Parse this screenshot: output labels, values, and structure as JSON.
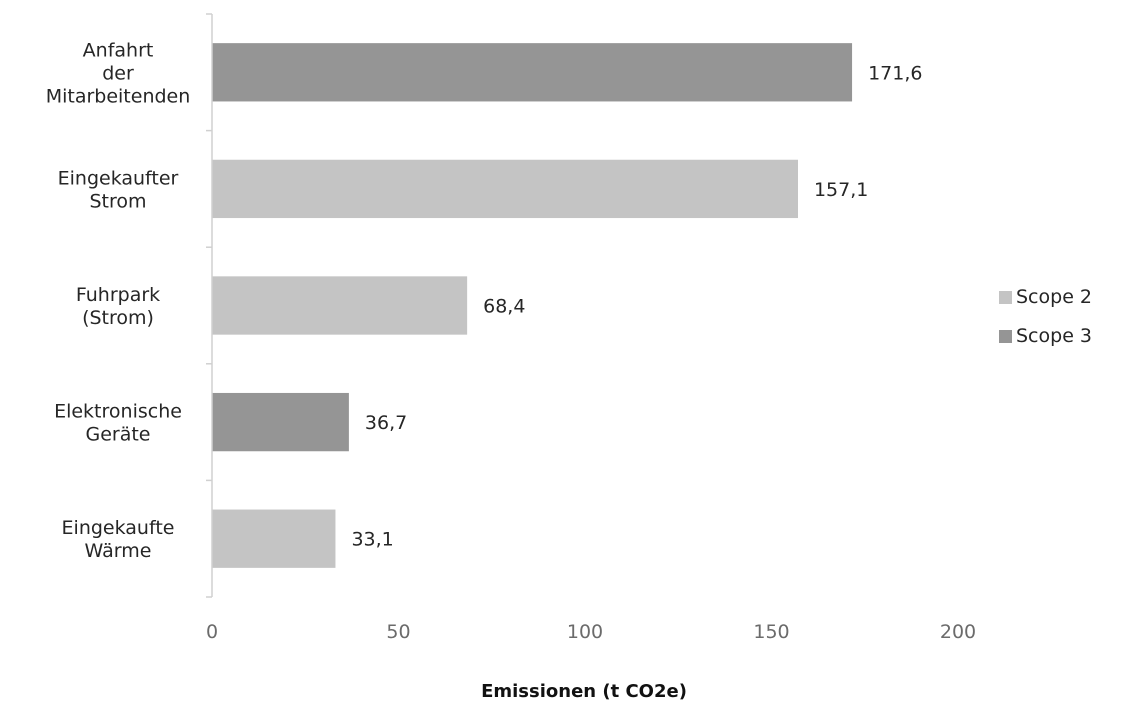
{
  "chart_data": {
    "type": "bar",
    "orientation": "horizontal",
    "categories": [
      [
        "Anfahrt",
        "der",
        "Mitarbeitenden"
      ],
      [
        "Eingekaufter",
        "Strom"
      ],
      [
        "Fuhrpark",
        "(Strom)"
      ],
      [
        "Elektronische",
        "Geräte"
      ],
      [
        "Eingekaufte",
        "Wärme"
      ]
    ],
    "values": [
      171.6,
      157.1,
      68.4,
      36.7,
      33.1
    ],
    "value_labels": [
      "171,6",
      "157,1",
      "68,4",
      "36,7",
      "33,1"
    ],
    "bar_series": [
      "Scope 3",
      "Scope 2",
      "Scope 2",
      "Scope 3",
      "Scope 2"
    ],
    "series": [
      {
        "name": "Scope 2",
        "color": "#c4c4c4"
      },
      {
        "name": "Scope 3",
        "color": "#959595"
      }
    ],
    "xlabel": "Emissionen (t CO2e)",
    "xlim": [
      0,
      200
    ],
    "xticks": [
      0,
      50,
      100,
      150,
      200
    ],
    "grid": false,
    "legend_position": "right"
  }
}
